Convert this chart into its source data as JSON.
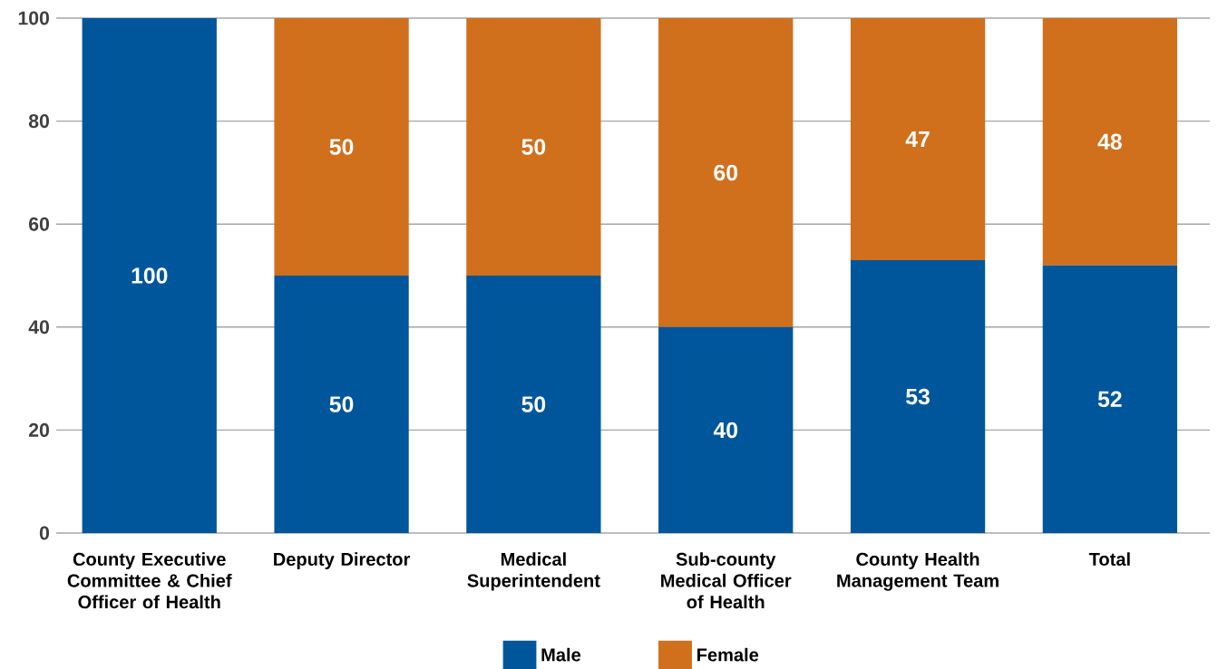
{
  "chart_data": {
    "type": "bar",
    "stacked": true,
    "categories": [
      "County Executive Committee & Chief Officer of Health",
      "Deputy Director",
      "Medical Superintendent",
      "Sub-county Medical Officer of Health",
      "County Health Management Team",
      "Total"
    ],
    "series": [
      {
        "name": "Male",
        "color": "#00569a",
        "values": [
          100,
          50,
          50,
          40,
          53,
          52
        ],
        "value_labels": [
          "100",
          "50",
          "50",
          "40",
          "53",
          "52"
        ]
      },
      {
        "name": "Female",
        "color": "#d06f1c",
        "values": [
          0,
          50,
          50,
          60,
          47,
          48
        ],
        "value_labels": [
          null,
          "50",
          "50",
          "60",
          "47",
          "48"
        ]
      }
    ],
    "ylim": [
      0,
      100
    ],
    "yticks": [
      0,
      20,
      40,
      60,
      80,
      100
    ],
    "grid": "y",
    "legend": "bottom"
  }
}
